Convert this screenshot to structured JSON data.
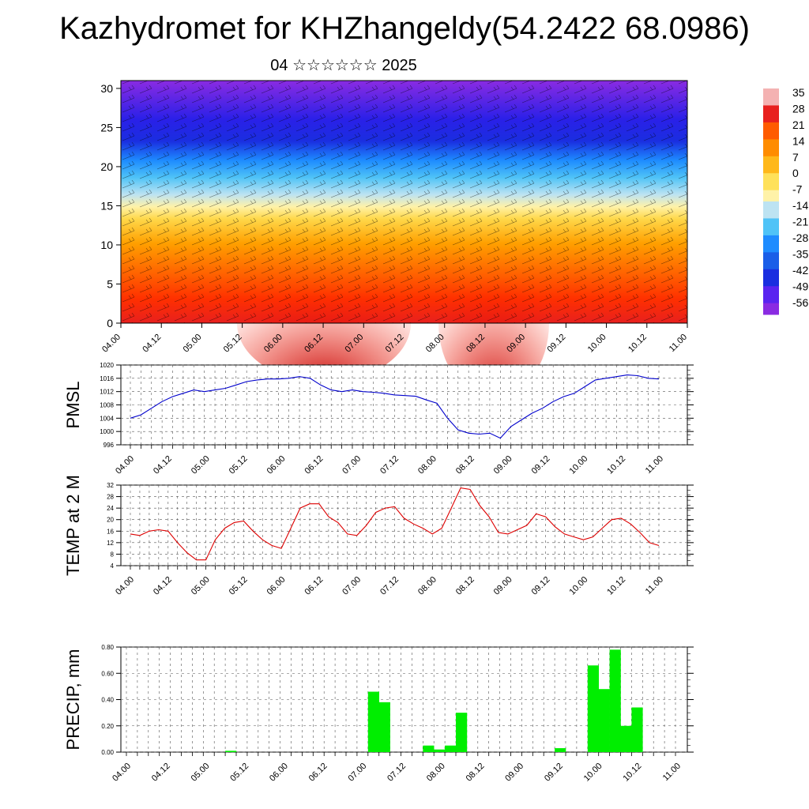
{
  "title": "Kazhydromet for KHZhangeldy(54.2422 68.0986)",
  "subtitle": "04 ☆☆☆☆☆☆ 2025",
  "colorbar": {
    "labels": [
      "35",
      "28",
      "21",
      "14",
      "7",
      "0",
      "-7",
      "-14",
      "-21",
      "-28",
      "-35",
      "-42",
      "-49",
      "-56"
    ],
    "colors": [
      "#f4b2b2",
      "#e8201e",
      "#ff5b00",
      "#ff8c00",
      "#ffb81a",
      "#ffe15a",
      "#fff2a8",
      "#bde3f2",
      "#4fc3f7",
      "#1e8cff",
      "#1a5ee8",
      "#1a2ee0",
      "#5a24f0",
      "#8a2be2"
    ]
  },
  "chart_data": [
    {
      "type": "heatmap",
      "description_key": "cross-section",
      "x_ticks": [
        "04.00",
        "04.12",
        "05.00",
        "05.12",
        "06.00",
        "06.12",
        "07.00",
        "07.12",
        "08.00",
        "08.12",
        "09.00",
        "09.12",
        "10.00",
        "10.12",
        "11.00"
      ],
      "y_ticks": [
        "0",
        "5",
        "10",
        "15",
        "20",
        "25",
        "30"
      ],
      "ylim": [
        0,
        31
      ],
      "colorbar_range": [
        -56,
        35
      ]
    },
    {
      "type": "line",
      "ylabel": "PMSL",
      "x_ticks": [
        "04.00",
        "04.12",
        "05.00",
        "05.12",
        "06.00",
        "06.12",
        "07.00",
        "07.12",
        "08.00",
        "08.12",
        "09.00",
        "09.12",
        "10.00",
        "10.12",
        "11.00"
      ],
      "y_ticks": [
        "1020",
        "1016",
        "1012",
        "1008",
        "1004",
        "1000",
        "996"
      ],
      "ylim": [
        996,
        1020
      ],
      "color": "#0000cc",
      "values": [
        1004,
        1005,
        1007,
        1009,
        1010.5,
        1011.5,
        1012.5,
        1012,
        1012.5,
        1013,
        1014,
        1015,
        1015.5,
        1015.8,
        1015.8,
        1016,
        1016.5,
        1016,
        1014,
        1012.5,
        1012,
        1012.5,
        1012,
        1011.8,
        1011.5,
        1011,
        1010.8,
        1010.6,
        1009.5,
        1008.5,
        1004,
        1000.5,
        999.5,
        999.2,
        999.5,
        998,
        1001.5,
        1003.5,
        1005.5,
        1007,
        1009,
        1010.5,
        1011.5,
        1013.5,
        1015.5,
        1016,
        1016.5,
        1017,
        1016.8,
        1016,
        1015.8
      ]
    },
    {
      "type": "line",
      "ylabel": "TEMP at 2 M",
      "x_ticks": [
        "04.00",
        "04.12",
        "05.00",
        "05.12",
        "06.00",
        "06.12",
        "07.00",
        "07.12",
        "08.00",
        "08.12",
        "09.00",
        "09.12",
        "10.00",
        "10.12",
        "11.00"
      ],
      "y_ticks": [
        "32",
        "28",
        "24",
        "20",
        "16",
        "12",
        "8",
        "4"
      ],
      "ylim": [
        4,
        32
      ],
      "color": "#dd0000",
      "values": [
        15,
        14.5,
        16,
        16.5,
        16,
        12,
        8.5,
        6,
        6,
        13,
        17,
        19,
        19.5,
        16,
        13,
        11,
        10,
        17,
        24,
        25.5,
        25.5,
        21,
        19,
        15,
        14.5,
        18,
        22.5,
        24,
        24.5,
        20.5,
        18.5,
        17,
        15,
        17,
        24,
        31,
        30.5,
        25,
        21,
        15.5,
        15,
        16.5,
        18,
        22,
        21,
        17.5,
        15,
        14,
        13,
        14,
        17,
        20,
        20.5,
        18.5,
        15.5,
        12,
        11
      ]
    },
    {
      "type": "bar",
      "ylabel": "PRECIP, mm",
      "x_ticks": [
        "04.00",
        "04.12",
        "05.00",
        "05.12",
        "06.00",
        "06.12",
        "07.00",
        "07.12",
        "08.00",
        "08.12",
        "09.00",
        "09.12",
        "10.00",
        "10.12",
        "11.00"
      ],
      "y_ticks": [
        "0.00",
        "0.20",
        "0.40",
        "0.60",
        "0.80"
      ],
      "ylim": [
        0,
        0.8
      ],
      "color": "#00ee00",
      "bars": [
        {
          "x": 9,
          "value": 0.01
        },
        {
          "x": 22,
          "value": 0.46
        },
        {
          "x": 23,
          "value": 0.38
        },
        {
          "x": 27,
          "value": 0.05
        },
        {
          "x": 28,
          "value": 0.02
        },
        {
          "x": 29,
          "value": 0.05
        },
        {
          "x": 30,
          "value": 0.3
        },
        {
          "x": 39,
          "value": 0.03
        },
        {
          "x": 42,
          "value": 0.66
        },
        {
          "x": 43,
          "value": 0.48
        },
        {
          "x": 44,
          "value": 0.78
        },
        {
          "x": 45,
          "value": 0.2
        },
        {
          "x": 46,
          "value": 0.34
        }
      ]
    }
  ]
}
